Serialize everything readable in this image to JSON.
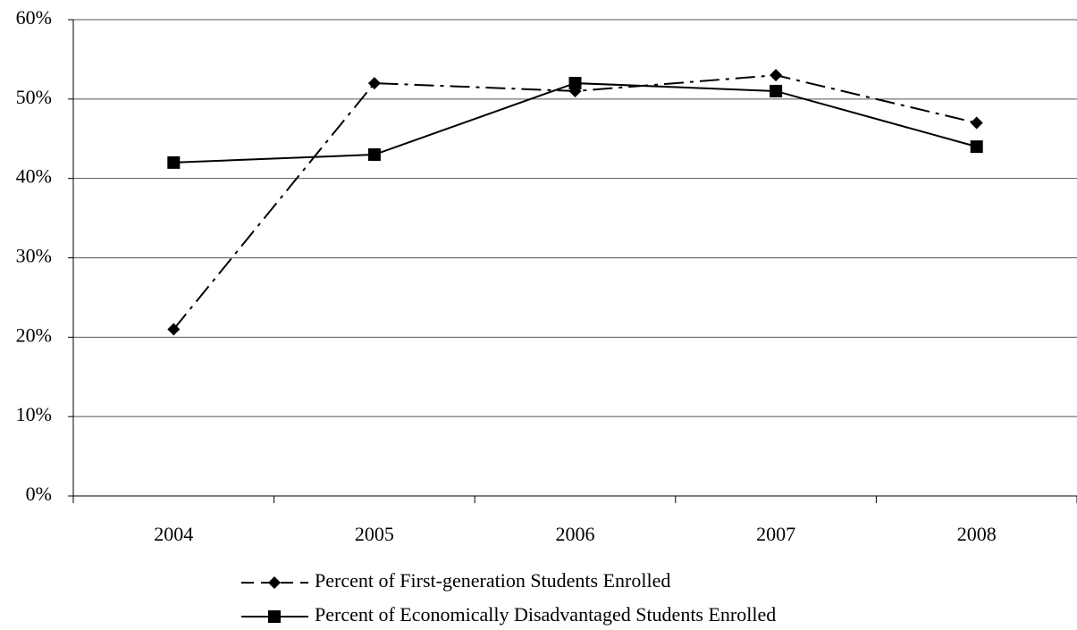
{
  "chart_data": {
    "type": "line",
    "categories": [
      "2004",
      "2005",
      "2006",
      "2007",
      "2008"
    ],
    "series": [
      {
        "name": "Percent of First-generation Students Enrolled",
        "color": "#000000",
        "line_style": "dashdot",
        "marker": "diamond",
        "values": [
          21,
          52,
          51,
          53,
          47
        ]
      },
      {
        "name": "Percent of Economically Disadvantaged Students Enrolled",
        "color": "#000000",
        "line_style": "solid",
        "marker": "square",
        "values": [
          42,
          43,
          52,
          51,
          44
        ]
      }
    ],
    "ylim": [
      0,
      60
    ],
    "yticks": [
      {
        "value": 0,
        "label": "0%"
      },
      {
        "value": 10,
        "label": "10%"
      },
      {
        "value": 20,
        "label": "20%"
      },
      {
        "value": 30,
        "label": "30%"
      },
      {
        "value": 40,
        "label": "40%"
      },
      {
        "value": 50,
        "label": "50%"
      },
      {
        "value": 60,
        "label": "60%"
      }
    ],
    "grid": true,
    "legend": "bottom"
  }
}
